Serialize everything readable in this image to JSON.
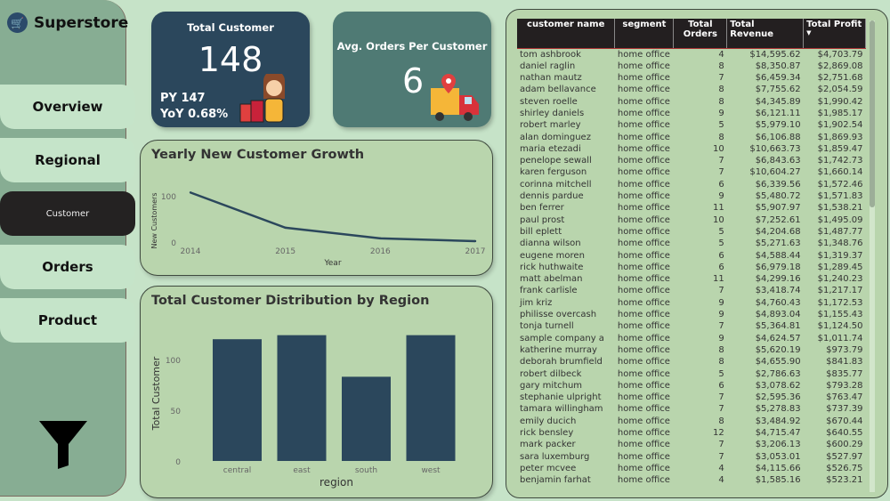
{
  "app": {
    "title": "Superstore",
    "logo_icon": "shopping-cart-icon"
  },
  "nav": [
    {
      "label": "Overview"
    },
    {
      "label": "Regional"
    },
    {
      "label": "Customer",
      "active": true
    },
    {
      "label": "Orders"
    },
    {
      "label": "Product"
    }
  ],
  "filter_icon": "funnel-icon",
  "kpi_total": {
    "title": "Total Customer",
    "value": "148",
    "py": "PY 147",
    "yoy": "YoY 0.68%",
    "icon": "shopper-woman-icon"
  },
  "kpi_avg": {
    "title": "Avg. Orders Per Customer",
    "value": "6",
    "icon": "delivery-truck-icon"
  },
  "colors": {
    "bg": "#c6e3c8",
    "sidebar": "#87ad93",
    "navy": "#2b475c",
    "teal": "#4f7a74",
    "panel": "#b9d5ad"
  },
  "chart_data": [
    {
      "type": "line",
      "title": "Yearly New Customer Growth",
      "xlabel": "Year",
      "ylabel": "New Customers",
      "categories": [
        "2014",
        "2015",
        "2016",
        "2017"
      ],
      "values": [
        107,
        31,
        8,
        2
      ],
      "yticks": [
        "0",
        "100"
      ],
      "ylim": [
        0,
        100
      ],
      "grid": false
    },
    {
      "type": "bar",
      "title": "Total Customer Distribution by Region",
      "xlabel": "region",
      "ylabel": "Total Customer",
      "categories": [
        "central",
        "east",
        "south",
        "west"
      ],
      "values": [
        120,
        124,
        83,
        124
      ],
      "yticks": [
        "0",
        "50",
        "100"
      ],
      "ylim": [
        0,
        130
      ],
      "grid": false
    }
  ],
  "table": {
    "columns": [
      "customer name",
      "segment",
      "Total Orders",
      "Total Revenue",
      "Total Profit"
    ],
    "sort_indicator": "▼",
    "rows": [
      [
        "tom ashbrook",
        "home office",
        "4",
        "$14,595.62",
        "$4,703.79"
      ],
      [
        "daniel raglin",
        "home office",
        "8",
        "$8,350.87",
        "$2,869.08"
      ],
      [
        "nathan mautz",
        "home office",
        "7",
        "$6,459.34",
        "$2,751.68"
      ],
      [
        "adam bellavance",
        "home office",
        "8",
        "$7,755.62",
        "$2,054.59"
      ],
      [
        "steven roelle",
        "home office",
        "8",
        "$4,345.89",
        "$1,990.42"
      ],
      [
        "shirley daniels",
        "home office",
        "9",
        "$6,121.11",
        "$1,985.17"
      ],
      [
        "robert marley",
        "home office",
        "5",
        "$5,979.10",
        "$1,902.54"
      ],
      [
        "alan dominguez",
        "home office",
        "8",
        "$6,106.88",
        "$1,869.93"
      ],
      [
        "maria etezadi",
        "home office",
        "10",
        "$10,663.73",
        "$1,859.47"
      ],
      [
        "penelope sewall",
        "home office",
        "7",
        "$6,843.63",
        "$1,742.73"
      ],
      [
        "karen ferguson",
        "home office",
        "7",
        "$10,604.27",
        "$1,660.14"
      ],
      [
        "corinna mitchell",
        "home office",
        "6",
        "$6,339.56",
        "$1,572.46"
      ],
      [
        "dennis pardue",
        "home office",
        "9",
        "$5,480.72",
        "$1,571.83"
      ],
      [
        "ben ferrer",
        "home office",
        "11",
        "$5,907.97",
        "$1,538.21"
      ],
      [
        "paul prost",
        "home office",
        "10",
        "$7,252.61",
        "$1,495.09"
      ],
      [
        "bill eplett",
        "home office",
        "5",
        "$4,204.68",
        "$1,487.77"
      ],
      [
        "dianna wilson",
        "home office",
        "5",
        "$5,271.63",
        "$1,348.76"
      ],
      [
        "eugene moren",
        "home office",
        "6",
        "$4,588.44",
        "$1,319.37"
      ],
      [
        "rick huthwaite",
        "home office",
        "6",
        "$6,979.18",
        "$1,289.45"
      ],
      [
        "matt abelman",
        "home office",
        "11",
        "$4,299.16",
        "$1,240.23"
      ],
      [
        "frank carlisle",
        "home office",
        "7",
        "$3,418.74",
        "$1,217.17"
      ],
      [
        "jim kriz",
        "home office",
        "9",
        "$4,760.43",
        "$1,172.53"
      ],
      [
        "philisse overcash",
        "home office",
        "9",
        "$4,893.04",
        "$1,155.43"
      ],
      [
        "tonja turnell",
        "home office",
        "7",
        "$5,364.81",
        "$1,124.50"
      ],
      [
        "sample company a",
        "home office",
        "9",
        "$4,624.57",
        "$1,011.74"
      ],
      [
        "katherine murray",
        "home office",
        "8",
        "$5,620.19",
        "$973.79"
      ],
      [
        "deborah brumfield",
        "home office",
        "8",
        "$4,655.90",
        "$841.83"
      ],
      [
        "robert dilbeck",
        "home office",
        "5",
        "$2,786.63",
        "$835.77"
      ],
      [
        "gary mitchum",
        "home office",
        "6",
        "$3,078.62",
        "$793.28"
      ],
      [
        "stephanie ulpright",
        "home office",
        "7",
        "$2,595.36",
        "$763.47"
      ],
      [
        "tamara willingham",
        "home office",
        "7",
        "$5,278.83",
        "$737.39"
      ],
      [
        "emily ducich",
        "home office",
        "8",
        "$3,484.92",
        "$670.44"
      ],
      [
        "rick bensley",
        "home office",
        "12",
        "$4,715.47",
        "$640.55"
      ],
      [
        "mark packer",
        "home office",
        "7",
        "$3,206.13",
        "$600.29"
      ],
      [
        "sara luxemburg",
        "home office",
        "7",
        "$3,053.01",
        "$527.97"
      ],
      [
        "peter mcvee",
        "home office",
        "4",
        "$4,115.66",
        "$526.75"
      ],
      [
        "benjamin farhat",
        "home office",
        "4",
        "$1,585.16",
        "$523.21"
      ]
    ]
  }
}
